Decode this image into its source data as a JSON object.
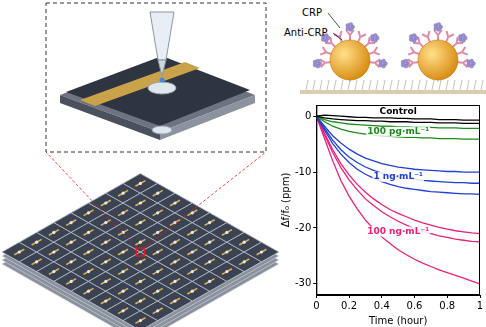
{
  "chart_data": {
    "type": "line",
    "xlabel": "Time (hour)",
    "ylabel": "Δf/f₀ (ppm)",
    "x": [
      0,
      0.05,
      0.1,
      0.15,
      0.2,
      0.25,
      0.3,
      0.35,
      0.4,
      0.45,
      0.5,
      0.55,
      0.6,
      0.65,
      0.7,
      0.75,
      0.8,
      0.85,
      0.9,
      0.95,
      1
    ],
    "xlim": [
      0,
      1
    ],
    "xticks": [
      0,
      0.2,
      0.4,
      0.6,
      0.8,
      1
    ],
    "ylim": [
      -32,
      2
    ],
    "yticks": [
      -30,
      -20,
      -10,
      0
    ],
    "grid": false,
    "series": [
      {
        "name": "Control",
        "color": "#000000",
        "values": [
          [
            0,
            -0.3,
            -0.5,
            -0.6,
            -0.7,
            -0.8,
            -0.8,
            -0.9,
            -0.9,
            -1.0,
            -1.0,
            -1.0,
            -1.1,
            -1.1,
            -1.1,
            -1.2,
            -1.2,
            -1.2,
            -1.3,
            -1.3,
            -1.3
          ],
          [
            0,
            0.2,
            0.1,
            0,
            -0.1,
            -0.2,
            -0.2,
            -0.3,
            -0.3,
            -0.3,
            -0.4,
            -0.4,
            -0.5,
            -0.5,
            -0.5,
            -0.6,
            -0.6,
            -0.6,
            -0.7,
            -0.7,
            -0.7
          ]
        ]
      },
      {
        "name": "100 pg·mL⁻¹",
        "color": "#1a8c1a",
        "values": [
          [
            0,
            -0.6,
            -1.0,
            -1.2,
            -1.4,
            -1.5,
            -1.6,
            -1.7,
            -1.8,
            -1.8,
            -1.9,
            -1.9,
            -2.0,
            -2.0,
            -2.0,
            -2.1,
            -2.1,
            -2.1,
            -2.2,
            -2.2,
            -2.2
          ],
          [
            0,
            -1.0,
            -1.8,
            -2.3,
            -2.7,
            -3.0,
            -3.2,
            -3.4,
            -3.5,
            -3.6,
            -3.7,
            -3.8,
            -3.8,
            -3.9,
            -3.9,
            -4.0,
            -4.0,
            -4.0,
            -4.1,
            -4.1,
            -4.1
          ]
        ]
      },
      {
        "name": "1 ng·mL⁻¹",
        "color": "#1f3fd6",
        "values": [
          [
            0,
            -1.8,
            -3.5,
            -4.8,
            -5.9,
            -6.8,
            -7.5,
            -8.0,
            -8.5,
            -8.8,
            -9.1,
            -9.3,
            -9.5,
            -9.6,
            -9.7,
            -9.8,
            -9.9,
            -9.9,
            -10.0,
            -10.0,
            -10.0
          ],
          [
            0,
            -2.2,
            -4.3,
            -6.0,
            -7.3,
            -8.3,
            -9.1,
            -9.7,
            -10.2,
            -10.6,
            -10.9,
            -11.1,
            -11.3,
            -11.5,
            -11.6,
            -11.7,
            -11.8,
            -11.9,
            -11.9,
            -12.0,
            -12.0
          ],
          [
            0,
            -2.5,
            -4.9,
            -6.8,
            -8.3,
            -9.5,
            -10.4,
            -11.1,
            -11.7,
            -12.2,
            -12.6,
            -12.9,
            -13.1,
            -13.3,
            -13.5,
            -13.6,
            -13.7,
            -13.8,
            -13.9,
            -13.9,
            -14.0
          ]
        ]
      },
      {
        "name": "100 ng·mL⁻¹",
        "color": "#e8207a",
        "values": [
          [
            0,
            -3,
            -6,
            -8.5,
            -10.5,
            -12.2,
            -13.6,
            -14.8,
            -15.8,
            -16.7,
            -17.4,
            -18.0,
            -18.6,
            -19.1,
            -19.5,
            -19.9,
            -20.2,
            -20.5,
            -20.7,
            -20.9,
            -21.0
          ],
          [
            0,
            -3.3,
            -6.5,
            -9.2,
            -11.4,
            -13.2,
            -14.8,
            -16.0,
            -17.1,
            -18.0,
            -18.8,
            -19.5,
            -20.1,
            -20.6,
            -21.0,
            -21.4,
            -21.7,
            -22.0,
            -22.2,
            -22.4,
            -22.5
          ],
          [
            0,
            -4,
            -8,
            -11.5,
            -14.3,
            -16.6,
            -18.6,
            -20.2,
            -21.6,
            -22.8,
            -23.9,
            -24.8,
            -25.6,
            -26.3,
            -26.9,
            -27.5,
            -28.0,
            -28.5,
            -29.0,
            -29.5,
            -30.0
          ]
        ]
      }
    ]
  },
  "diagram": {
    "labels": {
      "antigen": "CRP",
      "antibody": "Anti-CRP"
    }
  }
}
